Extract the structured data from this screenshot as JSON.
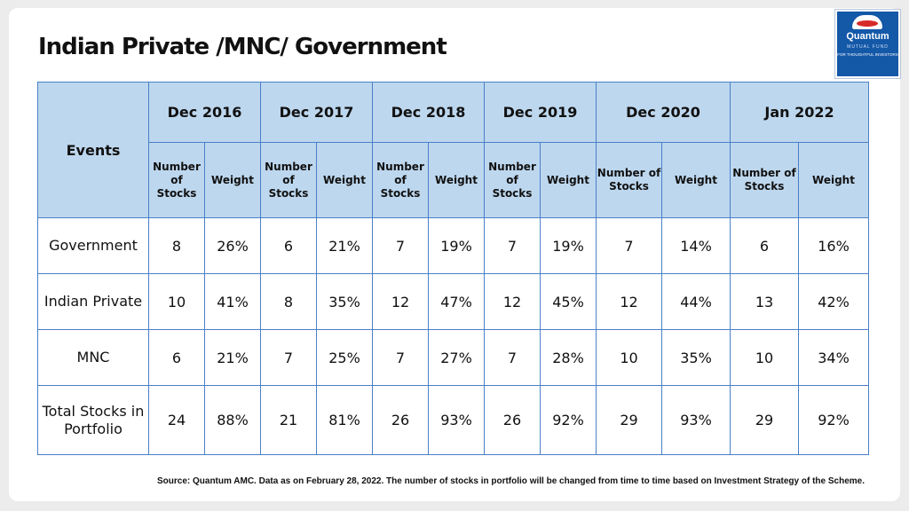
{
  "title": "Indian Private /MNC/ Government",
  "logo": {
    "name": "Quantum",
    "sub": "MUTUAL FUND",
    "tagline": "FOR THOUGHTFUL INVESTORS"
  },
  "table": {
    "events_header": "Events",
    "periods": [
      "Dec 2016",
      "Dec 2017",
      "Dec 2018",
      "Dec 2019",
      "Dec 2020",
      "Jan 2022"
    ],
    "subheaders": [
      {
        "count": "Number of Stocks",
        "weight": "Weight"
      },
      {
        "count": "Number of Stocks",
        "weight": "Weight"
      },
      {
        "count": "Number of Stocks",
        "weight": "Weight"
      },
      {
        "count": "Number of Stocks",
        "weight": "Weight"
      },
      {
        "count": "Number of Stocks",
        "weight": "Weight"
      },
      {
        "count": "Number of Stocks",
        "weight": "Weight"
      }
    ],
    "rows": [
      {
        "label": "Government",
        "values": [
          "8",
          "26%",
          "6",
          "21%",
          "7",
          "19%",
          "7",
          "19%",
          "7",
          "14%",
          "6",
          "16%"
        ]
      },
      {
        "label": "Indian Private",
        "values": [
          "10",
          "41%",
          "8",
          "35%",
          "12",
          "47%",
          "12",
          "45%",
          "12",
          "44%",
          "13",
          "42%"
        ]
      },
      {
        "label": "MNC",
        "values": [
          "6",
          "21%",
          "7",
          "25%",
          "7",
          "27%",
          "7",
          "28%",
          "10",
          "35%",
          "10",
          "34%"
        ]
      },
      {
        "label": "Total Stocks in Portfolio",
        "values": [
          "24",
          "88%",
          "21",
          "81%",
          "26",
          "93%",
          "26",
          "92%",
          "29",
          "93%",
          "29",
          "92%"
        ]
      }
    ]
  },
  "source": "Source: Quantum AMC. Data as on February 28, 2022. The number of stocks in portfolio will be changed from time to time based on Investment Strategy of the Scheme."
}
